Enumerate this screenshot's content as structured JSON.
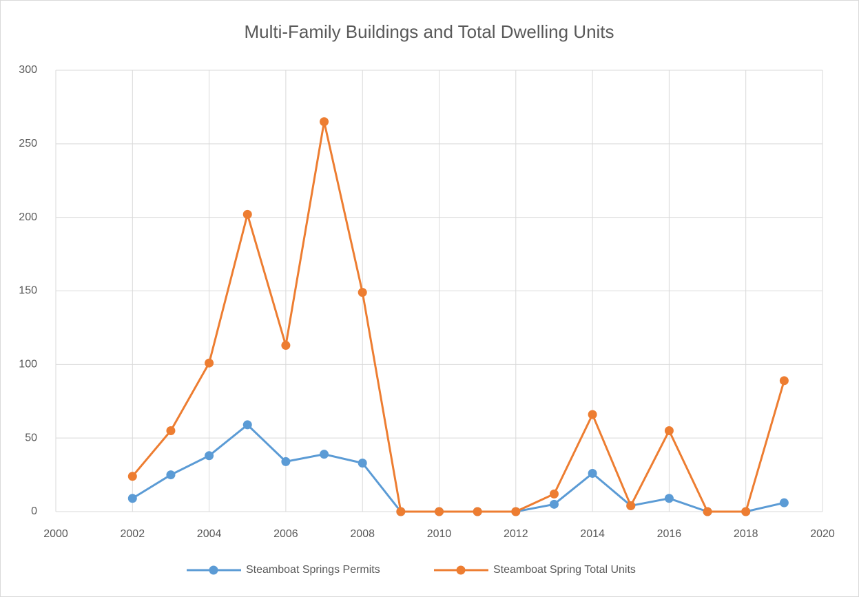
{
  "chart_data": {
    "type": "line",
    "title": "Multi-Family Buildings and Total Dwelling Units",
    "x": [
      2002,
      2003,
      2004,
      2005,
      2006,
      2007,
      2008,
      2009,
      2010,
      2011,
      2012,
      2013,
      2014,
      2015,
      2016,
      2017,
      2018,
      2019
    ],
    "series": [
      {
        "name": "Steamboat Springs Permits",
        "color": "#5b9bd5",
        "values": [
          9,
          25,
          38,
          59,
          34,
          39,
          33,
          0,
          0,
          0,
          0,
          5,
          26,
          4,
          9,
          0,
          0,
          6
        ]
      },
      {
        "name": "Steamboat Spring Total Units",
        "color": "#ed7d31",
        "values": [
          24,
          55,
          101,
          202,
          113,
          265,
          149,
          0,
          0,
          0,
          0,
          12,
          66,
          4,
          55,
          0,
          0,
          89
        ]
      }
    ],
    "xlim": [
      2000,
      2020
    ],
    "xticks": [
      2000,
      2002,
      2004,
      2006,
      2008,
      2010,
      2012,
      2014,
      2016,
      2018,
      2020
    ],
    "ylim": [
      0,
      300
    ],
    "yticks": [
      0,
      50,
      100,
      150,
      200,
      250,
      300
    ],
    "grid": true,
    "legend": "bottom"
  }
}
